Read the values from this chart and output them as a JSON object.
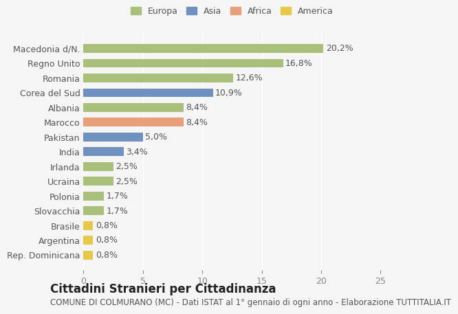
{
  "categories": [
    "Rep. Dominicana",
    "Argentina",
    "Brasile",
    "Slovacchia",
    "Polonia",
    "Ucraina",
    "Irlanda",
    "India",
    "Pakistan",
    "Marocco",
    "Albania",
    "Corea del Sud",
    "Romania",
    "Regno Unito",
    "Macedonia d/N."
  ],
  "values": [
    0.8,
    0.8,
    0.8,
    1.7,
    1.7,
    2.5,
    2.5,
    3.4,
    5.0,
    8.4,
    8.4,
    10.9,
    12.6,
    16.8,
    20.2
  ],
  "continents": [
    "America",
    "America",
    "America",
    "Europa",
    "Europa",
    "Europa",
    "Europa",
    "Asia",
    "Asia",
    "Africa",
    "Europa",
    "Asia",
    "Europa",
    "Europa",
    "Europa"
  ],
  "labels": [
    "0,8%",
    "0,8%",
    "0,8%",
    "1,7%",
    "1,7%",
    "2,5%",
    "2,5%",
    "3,4%",
    "5,0%",
    "8,4%",
    "8,4%",
    "10,9%",
    "12,6%",
    "16,8%",
    "20,2%"
  ],
  "colors": {
    "Europa": "#a8c07a",
    "Asia": "#7090c0",
    "Africa": "#e8a07a",
    "America": "#e8c84a"
  },
  "legend_labels": [
    "Europa",
    "Asia",
    "Africa",
    "America"
  ],
  "legend_colors": [
    "#a8c07a",
    "#7090c0",
    "#e8a07a",
    "#e8c84a"
  ],
  "xlim": [
    0,
    25
  ],
  "xticks": [
    0,
    5,
    10,
    15,
    20,
    25
  ],
  "title": "Cittadini Stranieri per Cittadinanza",
  "subtitle": "COMUNE DI COLMURANO (MC) - Dati ISTAT al 1° gennaio di ogni anno - Elaborazione TUTTITALIA.IT",
  "background_color": "#f5f5f5",
  "bar_background": "#ffffff",
  "grid_color": "#ffffff",
  "label_fontsize": 9,
  "title_fontsize": 12,
  "subtitle_fontsize": 8.5
}
